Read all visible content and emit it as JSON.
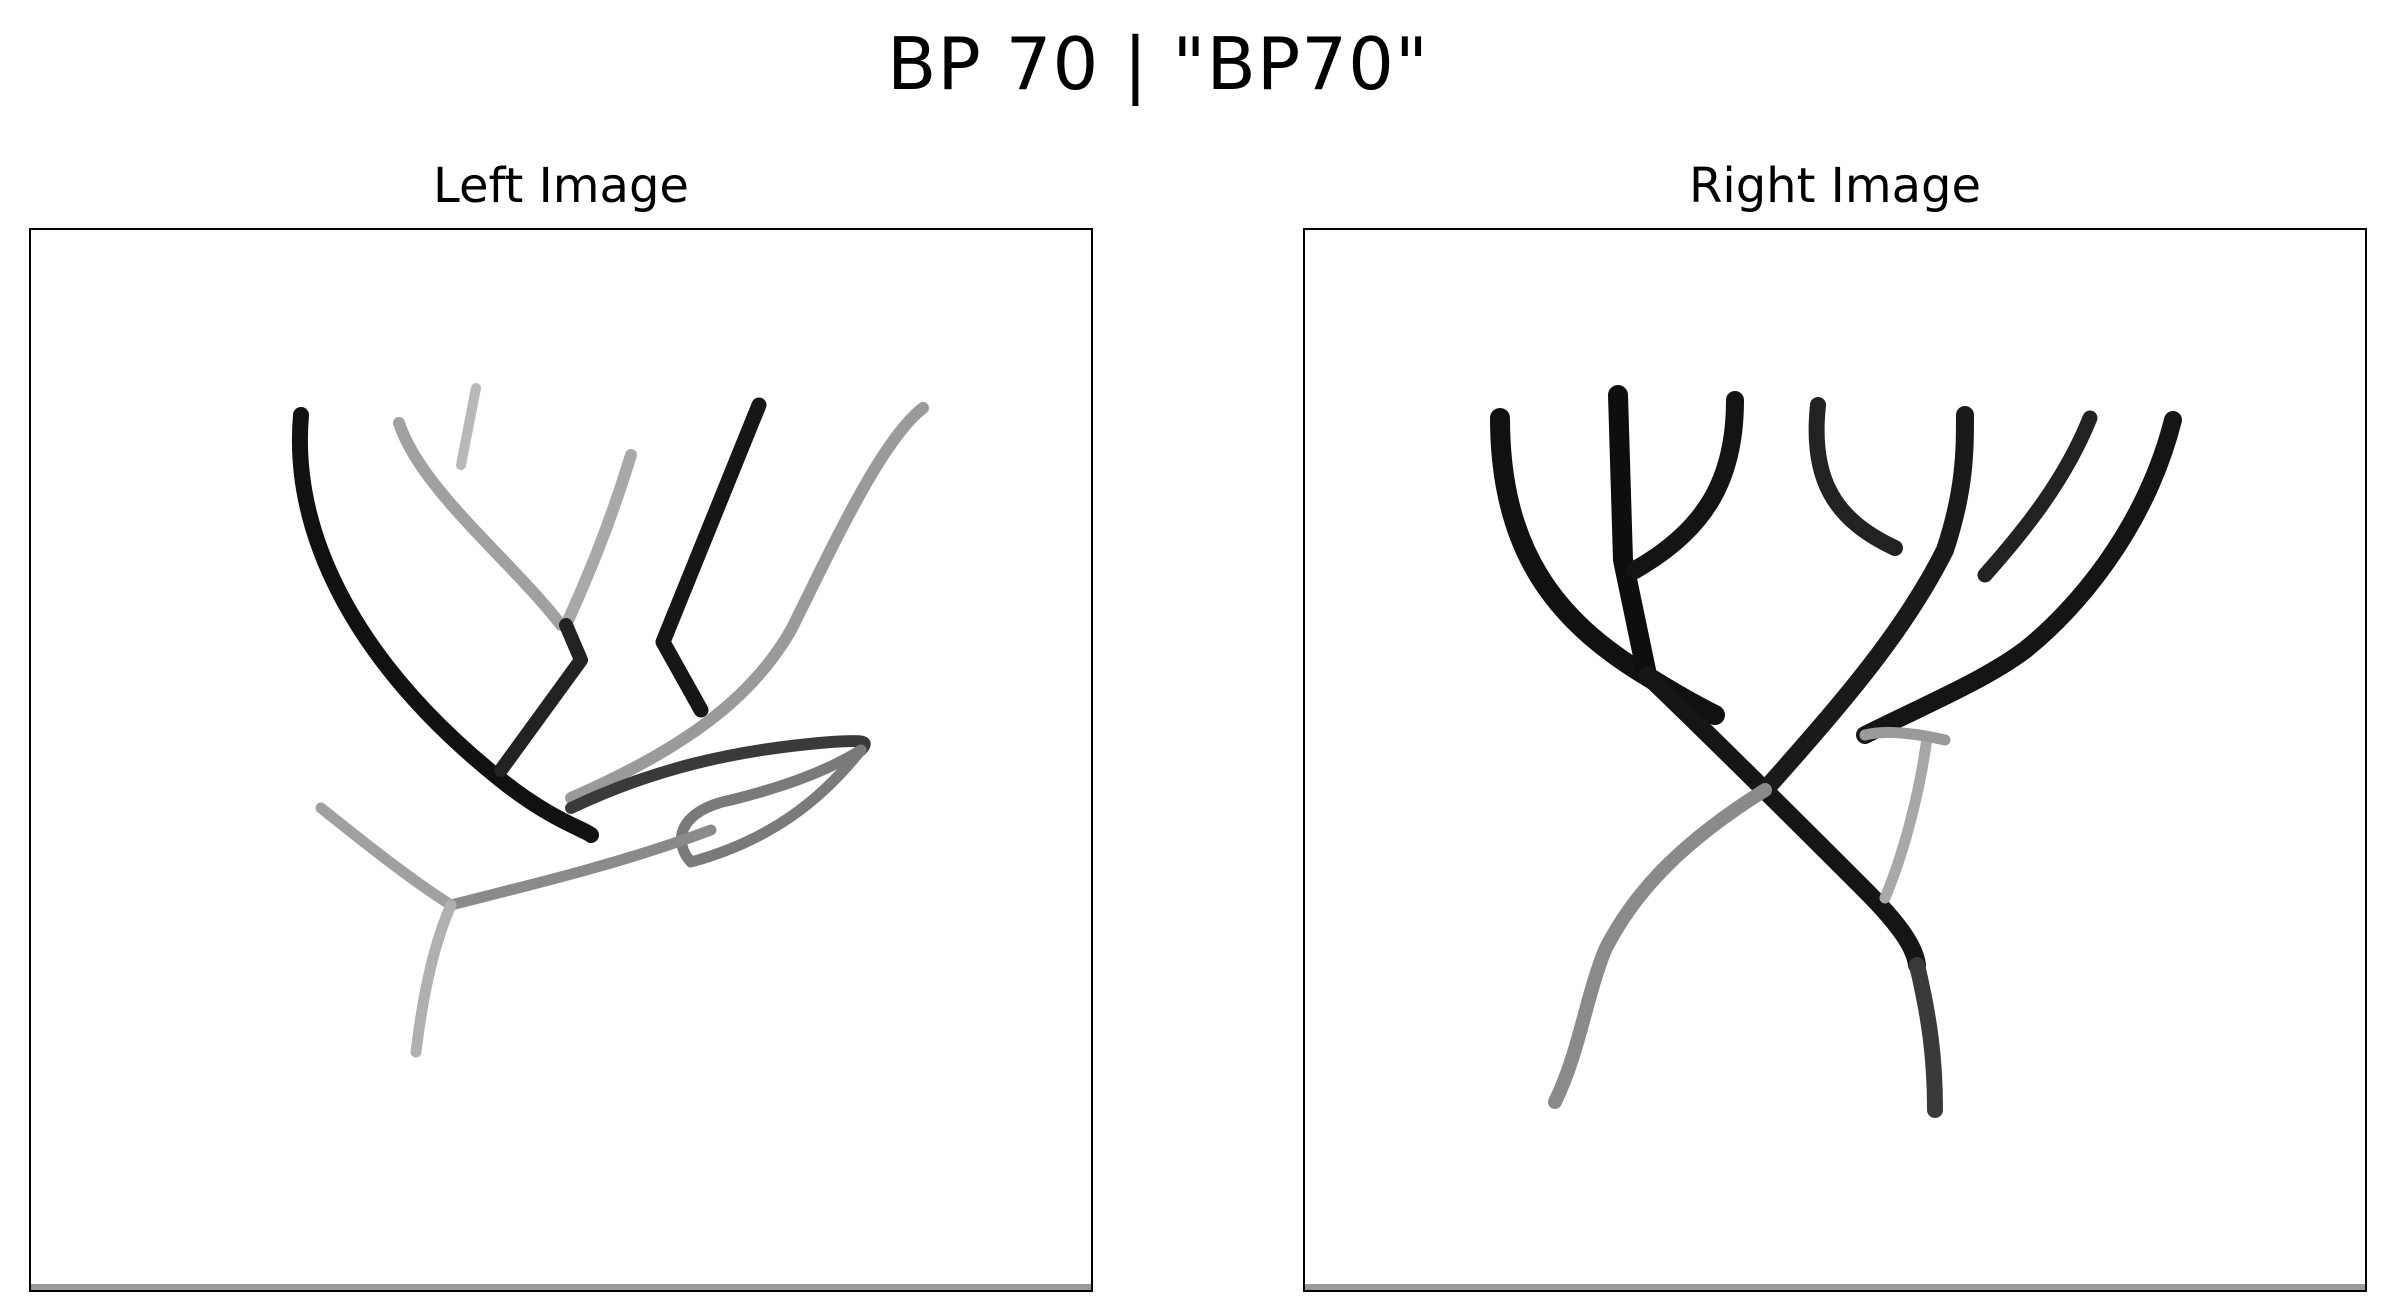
{
  "figure": {
    "title": "BP 70 | \"BP70\""
  },
  "panels": {
    "left": {
      "title": "Left Image",
      "image": "branching-lines-drawing"
    },
    "right": {
      "title": "Right Image",
      "image": "branching-lines-drawing"
    }
  },
  "colors": {
    "background": "#ffffff",
    "ink_dark": "#111111",
    "ink_light": "#9c9c9c",
    "frame": "#000000",
    "bottom_strip": "#9a9a9a"
  }
}
